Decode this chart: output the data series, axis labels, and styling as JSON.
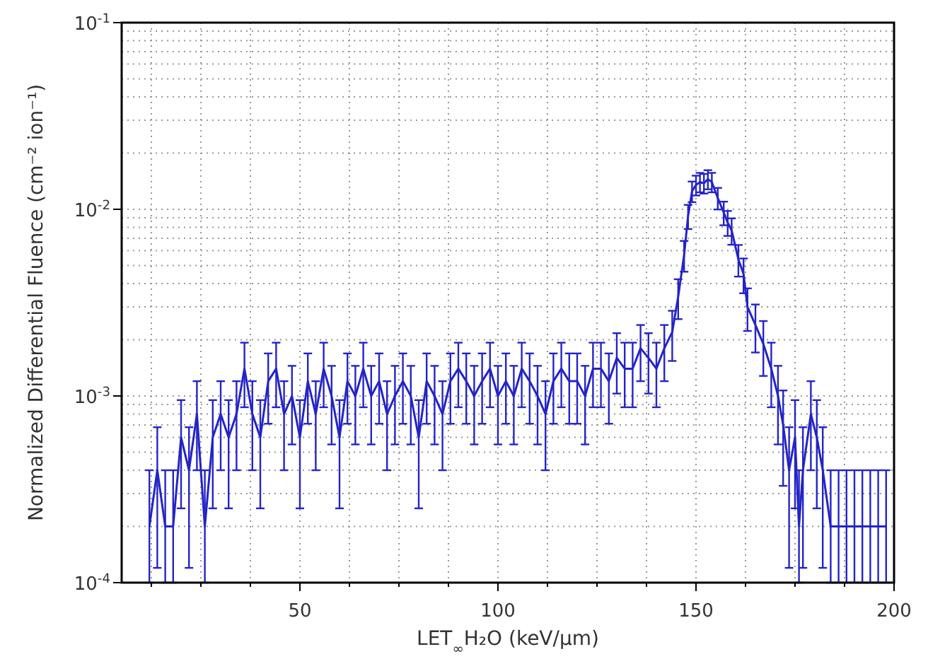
{
  "chart_data": {
    "type": "line",
    "xlabel": "LET$_{∞}$H₂O (keV/μm)",
    "ylabel": "Normalized Differential Fluence (cm⁻² ion⁻¹)",
    "log": "y",
    "grid": true,
    "marker": "none",
    "line_style": "solid",
    "xlim": [
      5,
      200
    ],
    "ylim": [
      0.0001,
      0.1
    ],
    "xticks": [
      {
        "value": 12.5,
        "label": null
      },
      {
        "value": 25,
        "label": null
      },
      {
        "value": 37.5,
        "label": null
      },
      50,
      {
        "value": 62.5,
        "label": null
      },
      {
        "value": 75,
        "label": null
      },
      {
        "value": 87.5,
        "label": null
      },
      100,
      {
        "value": 112.5,
        "label": null
      },
      {
        "value": 125,
        "label": null
      },
      {
        "value": 137.5,
        "label": null
      },
      150,
      {
        "value": 162.5,
        "label": null
      },
      {
        "value": 175,
        "label": null
      },
      {
        "value": 187.5,
        "label": null
      },
      200
    ],
    "yticks": [
      {
        "value": 0.0001,
        "label": "10$^{-4}$"
      },
      {
        "value": 0.0002,
        "label": null
      },
      {
        "value": 0.0003,
        "label": null
      },
      {
        "value": 0.0004,
        "label": null
      },
      {
        "value": 0.0005,
        "label": null
      },
      {
        "value": 0.0006,
        "label": null
      },
      {
        "value": 0.0007,
        "label": null
      },
      {
        "value": 0.0008,
        "label": null
      },
      {
        "value": 0.0009,
        "label": null
      },
      {
        "value": 0.001,
        "label": "10$^{-3}$"
      },
      {
        "value": 0.002,
        "label": null
      },
      {
        "value": 0.003,
        "label": null
      },
      {
        "value": 0.004,
        "label": null
      },
      {
        "value": 0.005,
        "label": null
      },
      {
        "value": 0.006,
        "label": null
      },
      {
        "value": 0.007,
        "label": null
      },
      {
        "value": 0.008,
        "label": null
      },
      {
        "value": 0.009,
        "label": null
      },
      {
        "value": 0.01,
        "label": "10$^{-2}$"
      },
      {
        "value": 0.02,
        "label": null
      },
      {
        "value": 0.03,
        "label": null
      },
      {
        "value": 0.04,
        "label": null
      },
      {
        "value": 0.05,
        "label": null
      },
      {
        "value": 0.06,
        "label": null
      },
      {
        "value": 0.07,
        "label": null
      },
      {
        "value": 0.08,
        "label": null
      },
      {
        "value": 0.09,
        "label": null
      },
      {
        "value": 0.1,
        "label": "10$^{-1}$"
      }
    ],
    "series": [
      {
        "color": "#2424c8",
        "x": [
          12,
          14,
          16,
          18,
          20,
          22,
          24,
          26,
          28,
          30,
          32,
          34,
          36,
          38,
          40,
          42,
          44,
          46,
          48,
          50,
          52,
          54,
          56,
          58,
          60,
          62,
          64,
          66,
          68,
          70,
          72,
          74,
          76,
          78,
          80,
          82,
          84,
          86,
          88,
          90,
          92,
          94,
          96,
          98,
          100,
          102,
          104,
          106,
          108,
          110,
          112,
          114,
          116,
          118,
          120,
          122,
          124,
          126,
          128,
          130,
          132,
          134,
          136,
          138,
          140,
          142,
          144,
          145.5,
          147,
          148,
          149,
          150,
          151,
          152,
          153,
          154,
          155.5,
          157,
          158,
          159,
          160.7,
          162,
          163,
          165,
          167,
          169,
          170.7,
          172,
          173.5,
          175,
          176,
          177,
          179,
          180.5,
          182,
          184,
          186,
          188,
          190,
          192,
          194,
          196,
          198
        ],
        "values": [
          0.0002,
          0.0004,
          0.0002,
          0.0002,
          0.0006,
          0.0004,
          0.0008,
          0.0002,
          0.0006,
          0.0008,
          0.0006,
          0.0008,
          0.0014,
          0.0008,
          0.0006,
          0.0012,
          0.0014,
          0.0008,
          0.001,
          0.0006,
          0.0012,
          0.0008,
          0.0014,
          0.001,
          0.0006,
          0.0012,
          0.001,
          0.0014,
          0.001,
          0.0012,
          0.0008,
          0.001,
          0.0012,
          0.001,
          0.0006,
          0.0012,
          0.001,
          0.0008,
          0.0012,
          0.0014,
          0.0012,
          0.001,
          0.0012,
          0.0014,
          0.001,
          0.0012,
          0.001,
          0.0014,
          0.0012,
          0.001,
          0.0008,
          0.0012,
          0.0014,
          0.0012,
          0.0012,
          0.001,
          0.0014,
          0.0014,
          0.0012,
          0.0016,
          0.0014,
          0.0014,
          0.0018,
          0.0016,
          0.0014,
          0.0018,
          0.0022,
          0.0034,
          0.0057,
          0.0092,
          0.0125,
          0.0135,
          0.014,
          0.0138,
          0.0145,
          0.014,
          0.0115,
          0.0096,
          0.0085,
          0.0077,
          0.0054,
          0.0045,
          0.003,
          0.0024,
          0.0019,
          0.0014,
          0.001,
          0.0007,
          0.0004,
          0.0006,
          0.0002,
          0.0004,
          0.0008,
          0.0006,
          0.0004,
          0.0002,
          0.0002,
          0.0002,
          0.0002,
          0.0002,
          0.0002,
          0.0002,
          0.0002
        ],
        "errors": [
          [
            0.0001,
            0.0004
          ],
          0.00028,
          [
            0.0001,
            0.0004
          ],
          [
            0.0001,
            0.0004
          ],
          0.00035,
          0.00028,
          0.0004,
          [
            0.0001,
            0.0004
          ],
          0.00035,
          0.0004,
          0.00035,
          0.0004,
          0.00053,
          0.0004,
          0.00035,
          0.00049,
          0.00053,
          0.0004,
          0.00045,
          0.00035,
          0.00049,
          0.0004,
          0.00053,
          0.00045,
          0.00035,
          0.00049,
          0.00045,
          0.00053,
          0.00045,
          0.00049,
          0.0004,
          0.00045,
          0.00049,
          0.00045,
          0.00035,
          0.00049,
          0.00045,
          0.0004,
          0.00049,
          0.00053,
          0.00049,
          0.00045,
          0.00049,
          0.00053,
          0.00045,
          0.00049,
          0.00045,
          0.00053,
          0.00049,
          0.00045,
          0.0004,
          0.00049,
          0.00053,
          0.00049,
          0.00049,
          0.00045,
          0.00053,
          0.00053,
          0.00049,
          0.00057,
          0.00053,
          0.00053,
          0.0006,
          0.00057,
          0.00053,
          0.0006,
          0.00066,
          0.00082,
          0.00107,
          0.00136,
          0.00158,
          0.00164,
          0.00167,
          0.00166,
          0.0017,
          0.00167,
          0.00152,
          0.00139,
          0.0013,
          0.00124,
          0.00104,
          0.00095,
          0.00077,
          0.00069,
          0.00062,
          0.00053,
          0.00045,
          0.00037,
          0.00028,
          0.00035,
          [
            0.0001,
            0.0004
          ],
          0.00028,
          0.0004,
          0.00035,
          0.00028,
          [
            0.0001,
            0.0004
          ],
          [
            0.0001,
            0.0004
          ],
          [
            0.0001,
            0.0004
          ],
          [
            0.0001,
            0.0004
          ],
          [
            0.0001,
            0.0004
          ],
          [
            0.0001,
            0.0004
          ],
          [
            0.0001,
            0.0004
          ],
          [
            0.0001,
            0.0004
          ]
        ]
      }
    ]
  }
}
